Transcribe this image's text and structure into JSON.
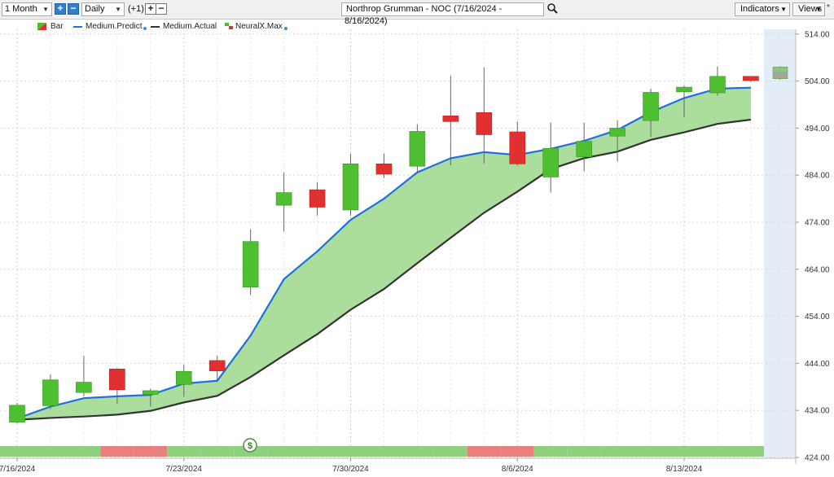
{
  "toolbar": {
    "period": "1 Month",
    "interval": "Daily",
    "offset": "(+1)",
    "symbol_title": "Northrop Grumman - NOC (7/16/2024 - 8/16/2024)",
    "indicators": "Indicators",
    "views": "Views",
    "star": "*"
  },
  "legend": {
    "bar": "Bar",
    "predict": "Medium.Predict",
    "actual": "Medium.Actual",
    "neural": "NeuralX.Max"
  },
  "colors": {
    "up": "#4dbf30",
    "down": "#e03030",
    "predict": "#1f6fe0",
    "actual": "#333333",
    "fill": "#a6dc97",
    "strip_up": "#8fd07e",
    "strip_down": "#e88080"
  },
  "signal_marker": "$",
  "chart_data": {
    "type": "candlestick",
    "ylim": [
      424,
      515
    ],
    "yticks": [
      "424.00",
      "434.00",
      "444.00",
      "454.00",
      "464.00",
      "474.00",
      "484.00",
      "494.00",
      "504.00",
      "514.00"
    ],
    "xticks": [
      "7/16/2024",
      "7/23/2024",
      "7/30/2024",
      "8/6/2024",
      "8/13/2024"
    ],
    "xtick_index": [
      0,
      5,
      10,
      15,
      20
    ],
    "candles": [
      {
        "o": 431.5,
        "h": 435.6,
        "l": 431.2,
        "c": 435.1
      },
      {
        "o": 435.0,
        "h": 441.7,
        "l": 434.3,
        "c": 440.5
      },
      {
        "o": 437.8,
        "h": 445.6,
        "l": 437.0,
        "c": 440.0
      },
      {
        "o": 442.8,
        "h": 443.0,
        "l": 435.4,
        "c": 438.4
      },
      {
        "o": 437.4,
        "h": 438.6,
        "l": 434.8,
        "c": 438.2
      },
      {
        "o": 439.5,
        "h": 443.7,
        "l": 436.9,
        "c": 442.3
      },
      {
        "o": 444.6,
        "h": 445.6,
        "l": 440.5,
        "c": 442.4
      },
      {
        "o": 460.2,
        "h": 472.5,
        "l": 458.5,
        "c": 469.9
      },
      {
        "o": 477.6,
        "h": 484.6,
        "l": 472.0,
        "c": 480.3
      },
      {
        "o": 480.9,
        "h": 482.5,
        "l": 475.4,
        "c": 477.2
      },
      {
        "o": 476.6,
        "h": 488.5,
        "l": 475.4,
        "c": 486.4
      },
      {
        "o": 486.4,
        "h": 488.6,
        "l": 483.4,
        "c": 484.2
      },
      {
        "o": 485.9,
        "h": 494.8,
        "l": 484.5,
        "c": 493.3
      },
      {
        "o": 496.6,
        "h": 505.1,
        "l": 486.1,
        "c": 495.4
      },
      {
        "o": 497.3,
        "h": 506.9,
        "l": 486.5,
        "c": 492.6
      },
      {
        "o": 493.2,
        "h": 495.4,
        "l": 486.0,
        "c": 486.4
      },
      {
        "o": 483.6,
        "h": 495.2,
        "l": 480.3,
        "c": 489.7
      },
      {
        "o": 487.9,
        "h": 495.2,
        "l": 484.8,
        "c": 491.2
      },
      {
        "o": 492.3,
        "h": 495.7,
        "l": 486.9,
        "c": 494.0
      },
      {
        "o": 495.6,
        "h": 502.4,
        "l": 492.1,
        "c": 501.6
      },
      {
        "o": 501.7,
        "h": 503.1,
        "l": 496.3,
        "c": 502.7
      },
      {
        "o": 501.5,
        "h": 507.1,
        "l": 500.9,
        "c": 505.0
      },
      {
        "o": 505.0,
        "h": 505.0,
        "l": 503.8,
        "c": 504.1
      }
    ],
    "projection": {
      "o": 507.0,
      "c": 504.5,
      "h": 507.2,
      "l": 504.3
    },
    "series": [
      {
        "name": "Medium.Predict",
        "values": [
          432.3,
          434.8,
          436.6,
          437.0,
          437.3,
          439.7,
          440.3,
          449.9,
          461.9,
          467.8,
          474.5,
          479.0,
          484.6,
          487.6,
          488.9,
          488.3,
          489.6,
          491.3,
          493.6,
          497.4,
          500.4,
          502.4,
          502.6
        ]
      },
      {
        "name": "Medium.Actual",
        "values": [
          432.0,
          432.4,
          432.7,
          433.1,
          433.9,
          435.7,
          437.1,
          441.1,
          445.7,
          450.2,
          455.4,
          459.8,
          465.3,
          470.7,
          476.0,
          480.5,
          485.3,
          487.6,
          489.0,
          491.5,
          493.1,
          494.9,
          495.8
        ]
      }
    ],
    "signal_strip": [
      "up",
      "up",
      "up",
      "down",
      "down",
      "up",
      "up",
      "up",
      "up",
      "up",
      "up",
      "up",
      "up",
      "up",
      "down",
      "down",
      "up",
      "up",
      "up",
      "up",
      "up",
      "up",
      "up"
    ]
  }
}
